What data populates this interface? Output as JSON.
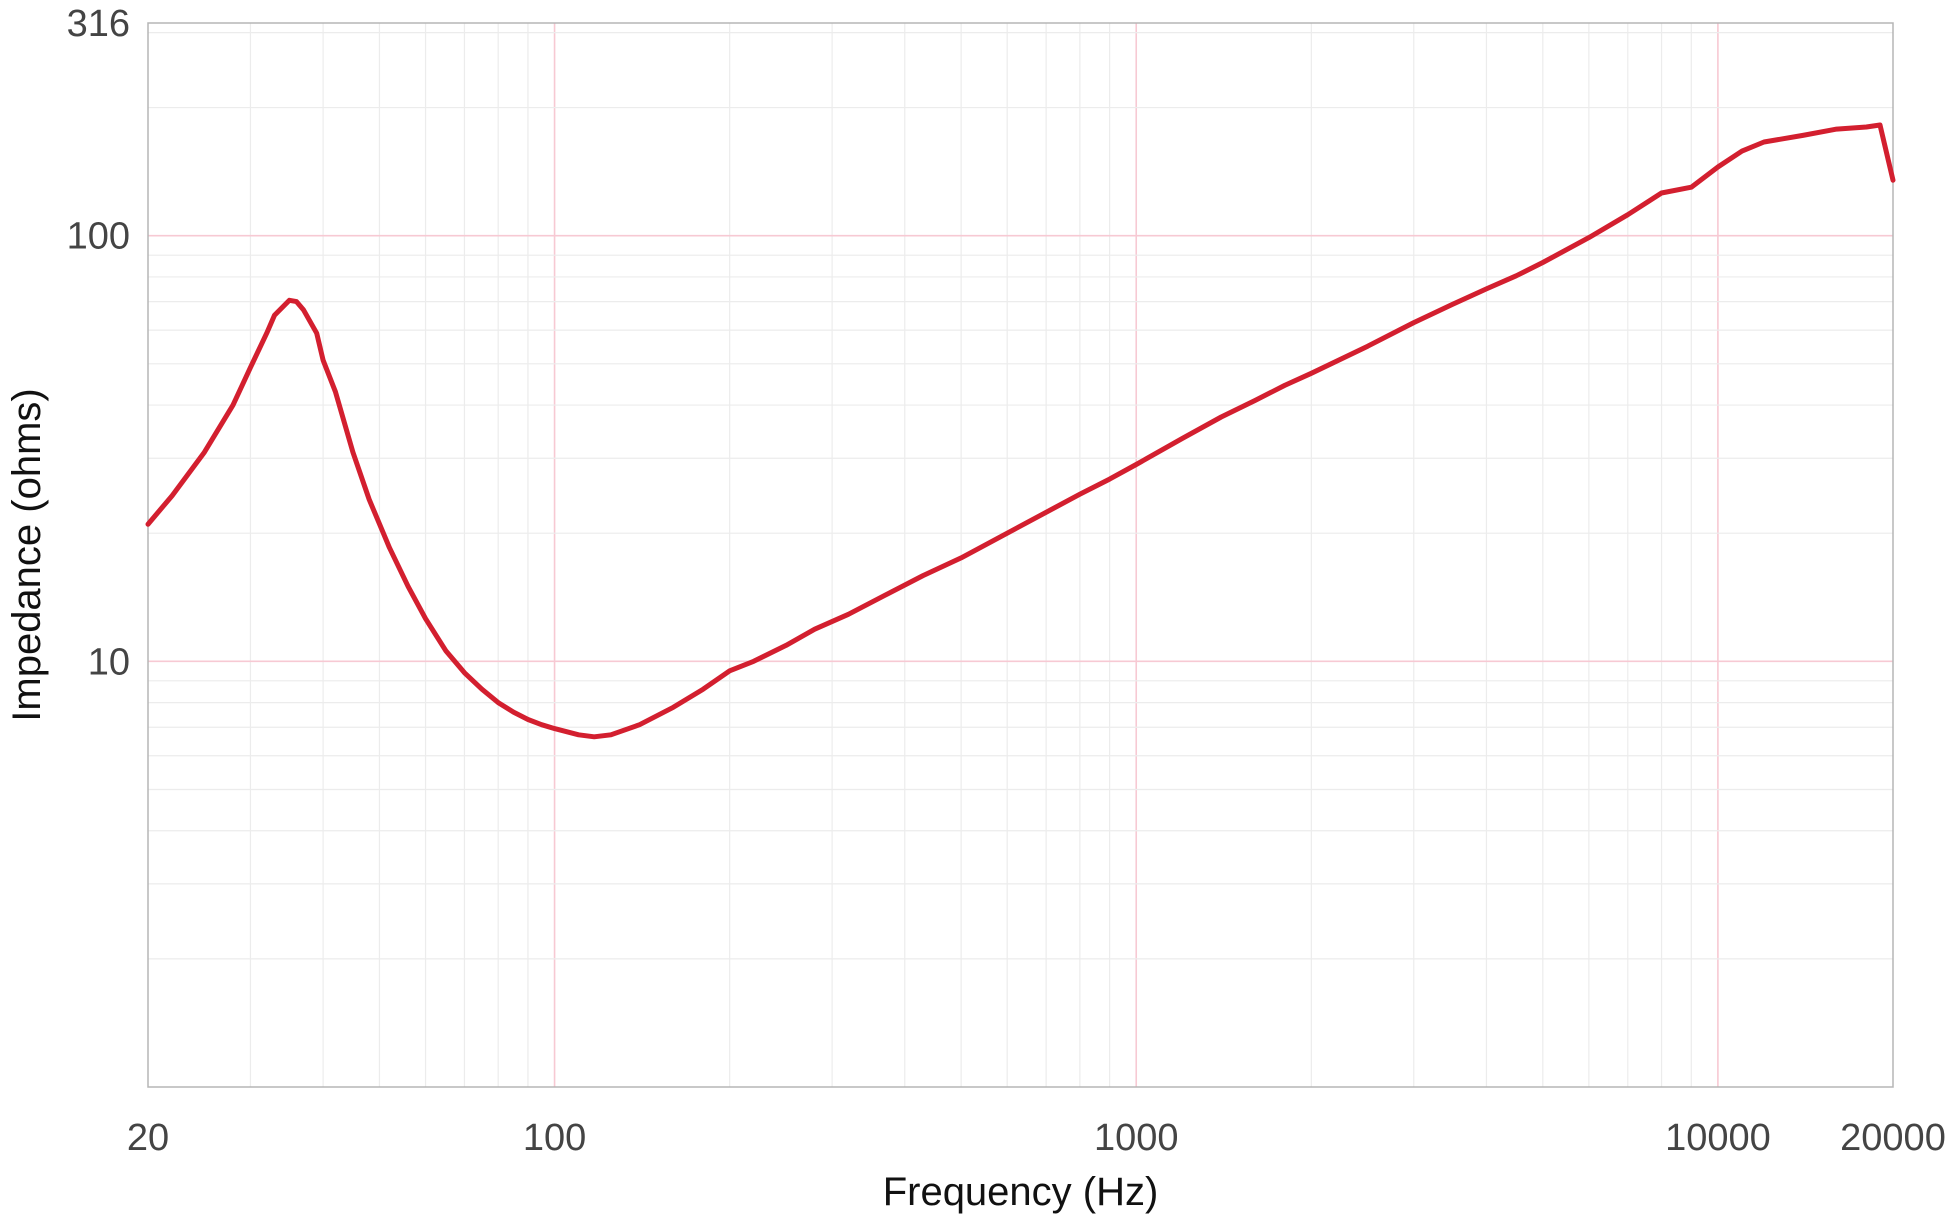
{
  "chart_data": {
    "type": "line",
    "xlabel": "Frequency (Hz)",
    "ylabel": "Impedance (ohms)",
    "x_scale": "log",
    "y_scale": "log",
    "xlim": [
      20,
      20000
    ],
    "ylim": [
      1,
      316
    ],
    "x_ticks": [
      {
        "value": 20,
        "label": "20"
      },
      {
        "value": 100,
        "label": "100"
      },
      {
        "value": 1000,
        "label": "1000"
      },
      {
        "value": 10000,
        "label": "10000"
      },
      {
        "value": 20000,
        "label": "20000"
      }
    ],
    "y_ticks": [
      {
        "value": 10,
        "label": "10"
      },
      {
        "value": 100,
        "label": "100"
      },
      {
        "value": 316,
        "label": "316"
      }
    ],
    "grid": true,
    "line_color": "#d31f2f",
    "major_grid_color": "#f7c9d3",
    "minor_grid_color": "#ececec",
    "series": [
      {
        "x": [
          20,
          22,
          25,
          28,
          30,
          32,
          33,
          35,
          36,
          37,
          39,
          40,
          42,
          45,
          48,
          52,
          56,
          60,
          65,
          70,
          75,
          80,
          85,
          90,
          95,
          100,
          110,
          117,
          125,
          140,
          160,
          180,
          200,
          220,
          250,
          280,
          320,
          370,
          430,
          500,
          600,
          700,
          800,
          900,
          1000,
          1200,
          1400,
          1600,
          1800,
          2000,
          2500,
          3000,
          3500,
          4000,
          4500,
          5000,
          6000,
          7000,
          8000,
          9000,
          10000,
          11000,
          12000,
          14000,
          16000,
          18000,
          19000,
          20000
        ],
        "y": [
          21,
          24.5,
          31,
          40,
          49,
          59,
          65,
          70.5,
          70,
          67,
          59,
          51,
          43,
          31,
          24,
          18.5,
          15,
          12.6,
          10.6,
          9.4,
          8.6,
          8.0,
          7.6,
          7.3,
          7.1,
          6.95,
          6.72,
          6.65,
          6.72,
          7.1,
          7.8,
          8.6,
          9.5,
          10.0,
          10.9,
          11.9,
          12.9,
          14.3,
          15.9,
          17.5,
          20.0,
          22.4,
          24.7,
          26.8,
          29.0,
          33.4,
          37.5,
          41.0,
          44.5,
          47.5,
          55.0,
          62.5,
          69.0,
          75.0,
          80.5,
          86.5,
          99,
          112,
          126,
          130,
          145,
          158,
          166,
          172,
          178,
          180,
          182,
          135
        ]
      }
    ]
  }
}
